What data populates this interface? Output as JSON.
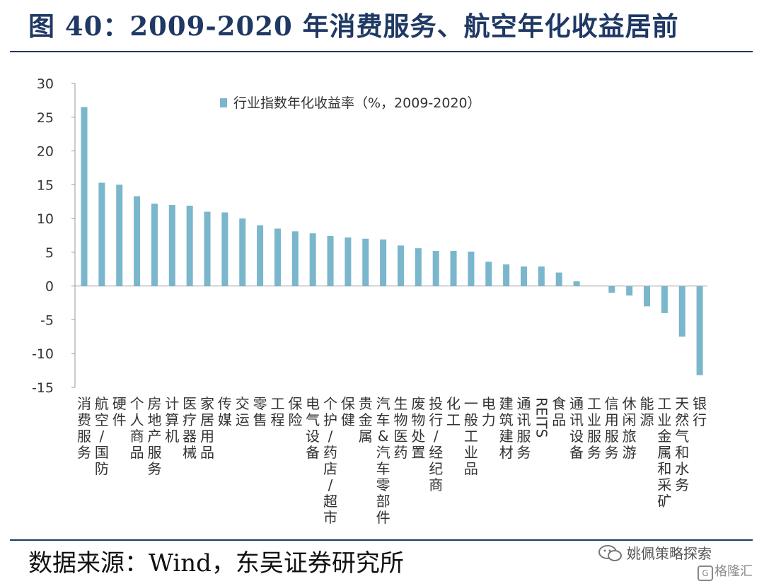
{
  "header": {
    "title": "图 40：2009-2020 年消费服务、航空年化收益居前"
  },
  "footer": {
    "source": "数据来源：Wind，东吴证券研究所"
  },
  "watermark": {
    "name": "姚佩策略探索",
    "sub_icon": "G",
    "sub_text": "格隆汇"
  },
  "chart_data": {
    "type": "bar",
    "title": "",
    "xlabel": "",
    "ylabel": "",
    "ylim": [
      -15,
      30
    ],
    "yticks": [
      30,
      25,
      20,
      15,
      10,
      5,
      0,
      -5,
      -10,
      -15
    ],
    "grid": false,
    "legend_position": "top-center",
    "bar_color": "#7ab6cc",
    "series": [
      {
        "name": "行业指数年化收益率（%，2009-2020）",
        "values": [
          26.5,
          15.3,
          15.0,
          13.3,
          12.2,
          12.0,
          11.9,
          11.0,
          10.9,
          10.0,
          9.0,
          8.5,
          8.1,
          7.8,
          7.4,
          7.2,
          7.0,
          6.9,
          6.0,
          5.6,
          5.2,
          5.2,
          5.1,
          3.6,
          3.2,
          2.9,
          2.9,
          2.0,
          0.7,
          0.0,
          -1.0,
          -1.4,
          -3.0,
          -4.0,
          -7.5,
          -13.2
        ]
      }
    ],
    "categories": [
      "消费服务",
      "航空/国防",
      "硬件",
      "个人商品",
      "房地产服务",
      "计算机",
      "医疗器械",
      "家居用品",
      "传媒",
      "交运",
      "零售",
      "工程",
      "保险",
      "电气设备",
      "个护/药店/超市",
      "保健",
      "贵金属",
      "汽车&汽车零部件",
      "生物医药",
      "废物处置",
      "投行/经纪商",
      "化工",
      "一般工业品",
      "电力",
      "建筑建材",
      "通讯服务",
      "REITS",
      "食品",
      "通讯设备",
      "工业服务",
      "信用服务",
      "休闲旅游",
      "能源",
      "工业金属和采矿",
      "天然气和水务",
      "银行"
    ]
  }
}
